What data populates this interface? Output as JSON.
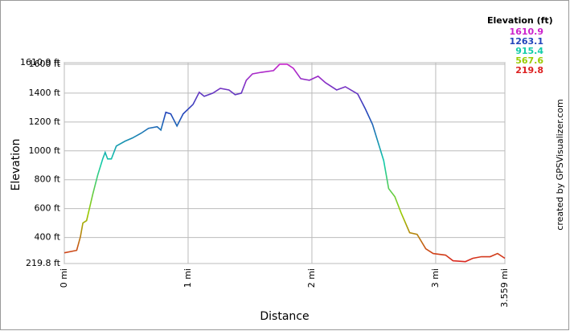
{
  "chart_data": {
    "type": "line",
    "ylabel": "Elevation",
    "xlabel": "Distance",
    "watermark": "created by GPSVisualizer.com",
    "legend_title": "Elevation (ft)",
    "legend": [
      {
        "value": 1610.9,
        "color": "#cc22cc"
      },
      {
        "value": 1263.1,
        "color": "#2244bb"
      },
      {
        "value": 915.4,
        "color": "#11ccaa"
      },
      {
        "value": 567.6,
        "color": "#99cc00"
      },
      {
        "value": 219.8,
        "color": "#dd2020"
      }
    ],
    "xlim": [
      0,
      3.559
    ],
    "ylim": [
      219.8,
      1610.9
    ],
    "xticks": [
      {
        "value": 0,
        "label": "0 mi"
      },
      {
        "value": 1,
        "label": "1 mi"
      },
      {
        "value": 2,
        "label": "2 mi"
      },
      {
        "value": 3,
        "label": "3 mi"
      },
      {
        "value": 3.559,
        "label": "3.559 mi"
      }
    ],
    "yticks": [
      {
        "value": 219.8,
        "label": "219.8 ft"
      },
      {
        "value": 400,
        "label": "400 ft"
      },
      {
        "value": 600,
        "label": "600 ft"
      },
      {
        "value": 800,
        "label": "800 ft"
      },
      {
        "value": 1000,
        "label": "1000 ft"
      },
      {
        "value": 1200,
        "label": "1200 ft"
      },
      {
        "value": 1400,
        "label": "1400 ft"
      },
      {
        "value": 1600,
        "label": "1600 ft"
      },
      {
        "value": 1610.9,
        "label": "1610.9 ft"
      }
    ],
    "grid": true,
    "x": [
      0,
      0.1,
      0.13,
      0.15,
      0.18,
      0.23,
      0.27,
      0.31,
      0.33,
      0.35,
      0.38,
      0.42,
      0.49,
      0.55,
      0.62,
      0.68,
      0.75,
      0.78,
      0.82,
      0.86,
      0.91,
      0.96,
      1.04,
      1.09,
      1.13,
      1.2,
      1.26,
      1.33,
      1.38,
      1.43,
      1.47,
      1.52,
      1.59,
      1.69,
      1.74,
      1.8,
      1.85,
      1.91,
      1.98,
      2.05,
      2.11,
      2.2,
      2.27,
      2.37,
      2.43,
      2.49,
      2.53,
      2.58,
      2.62,
      2.67,
      2.72,
      2.79,
      2.85,
      2.92,
      2.98,
      3.08,
      3.14,
      3.24,
      3.3,
      3.37,
      3.44,
      3.5,
      3.559
    ],
    "values": [
      294,
      311,
      405,
      500,
      517,
      700,
      833,
      944,
      989,
      944,
      944,
      1033,
      1067,
      1089,
      1122,
      1156,
      1167,
      1144,
      1267,
      1256,
      1172,
      1256,
      1322,
      1406,
      1378,
      1400,
      1433,
      1422,
      1389,
      1400,
      1489,
      1533,
      1544,
      1556,
      1600,
      1600,
      1572,
      1500,
      1489,
      1517,
      1472,
      1422,
      1444,
      1394,
      1294,
      1183,
      1072,
      933,
      739,
      683,
      572,
      433,
      422,
      322,
      289,
      278,
      239,
      233,
      256,
      267,
      267,
      289,
      256
    ]
  }
}
